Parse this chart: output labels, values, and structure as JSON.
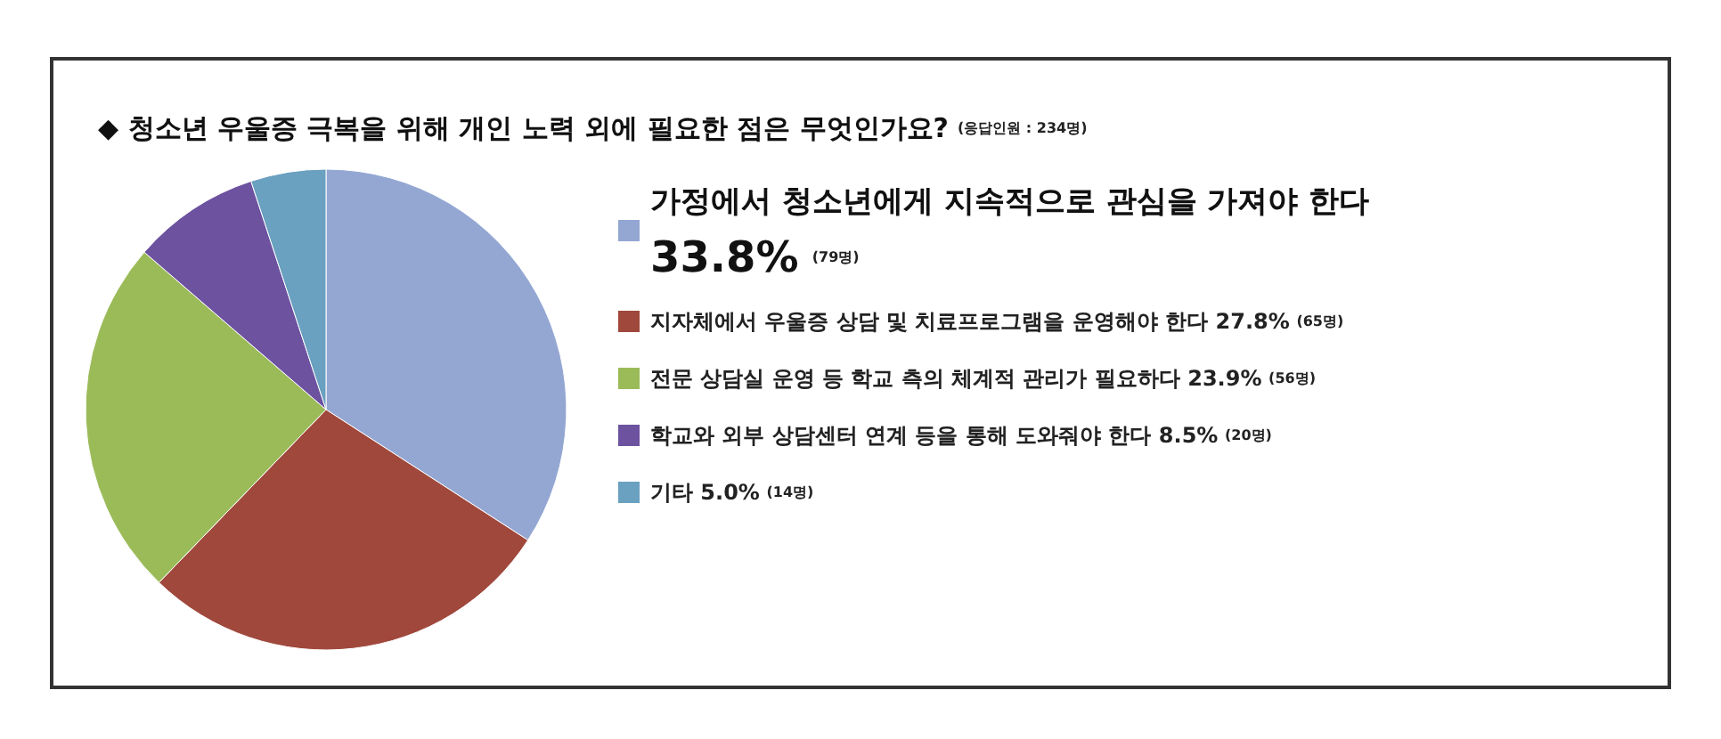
{
  "chart_data": {
    "type": "pie",
    "title": "◆ 청소년 우울증 극복을 위해 개인 노력 외에 필요한 점은 무엇인가요?",
    "subtitle": "(응답인원 : 234명)",
    "categories": [
      "가정에서 청소년에게 지속적으로 관심을 가져야 한다",
      "지자체에서 우울증 상담 및 치료프로그램을 운영해야 한다",
      "전문 상담실 운영 등 학교 측의 체계적 관리가 필요하다",
      "학교와 외부 상담센터 연계 등을 통해 도와줘야 한다",
      "기타"
    ],
    "values": [
      33.8,
      27.8,
      23.9,
      8.5,
      5.0
    ],
    "value_labels": [
      "33.8% (79명)",
      "27.8% (65명)",
      "23.9% (56명)",
      "8.5% (20명)",
      "5.0% (14명)"
    ],
    "colors": [
      "#94a7d3",
      "#a0483c",
      "#9bbb59",
      "#6d52a0",
      "#6aa0c0"
    ],
    "legend": "right"
  }
}
